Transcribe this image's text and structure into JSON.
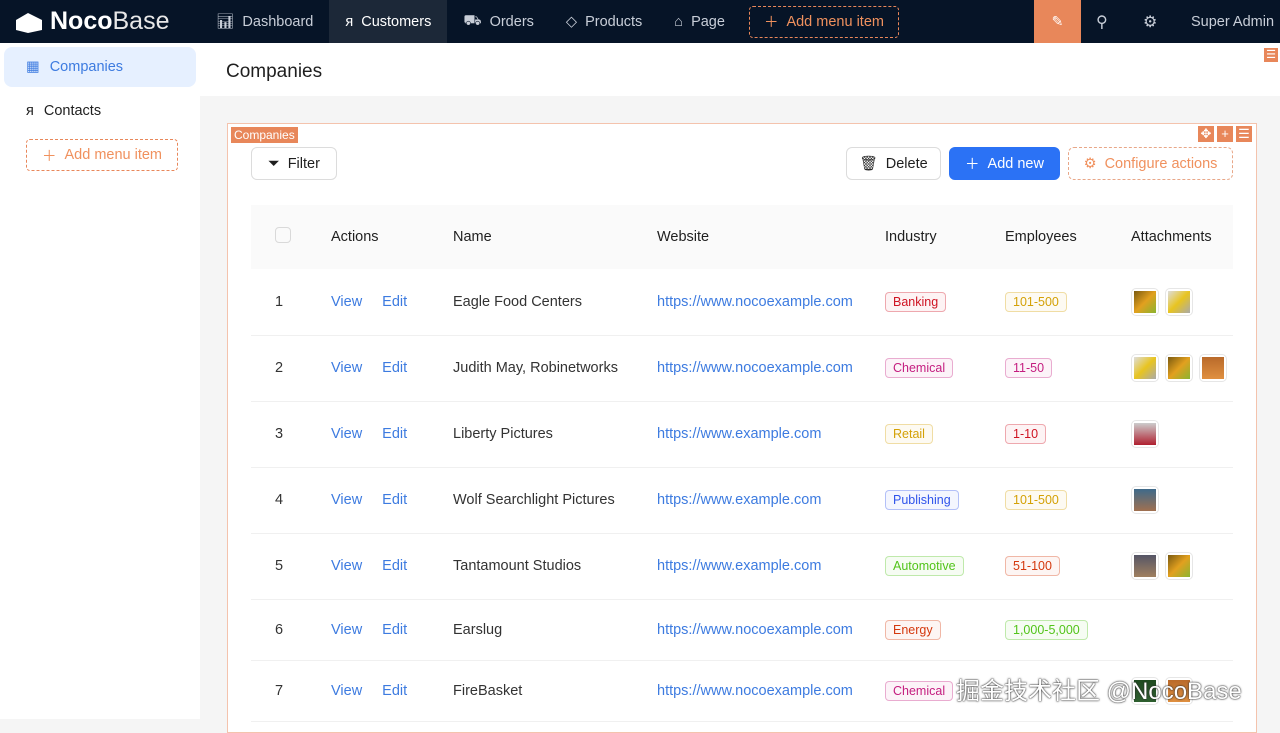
{
  "brand": {
    "bold": "Noco",
    "light": "Base"
  },
  "topnav": {
    "items": [
      {
        "label": "Dashboard",
        "icon": "bar-chart-icon"
      },
      {
        "label": "Customers",
        "icon": "user-icon",
        "active": true
      },
      {
        "label": "Orders",
        "icon": "cart-icon"
      },
      {
        "label": "Products",
        "icon": "tag-icon"
      },
      {
        "label": "Page",
        "icon": "alarm-icon"
      }
    ],
    "add_menu": "Add menu item",
    "user": "Super Admin"
  },
  "sidebar": {
    "items": [
      {
        "label": "Companies",
        "active": true
      },
      {
        "label": "Contacts"
      }
    ],
    "add_menu": "Add menu item"
  },
  "page": {
    "title": "Companies"
  },
  "block": {
    "tag": "Companies",
    "filter": "Filter",
    "delete": "Delete",
    "add_new": "Add new",
    "configure": "Configure actions"
  },
  "table": {
    "columns": [
      "Actions",
      "Name",
      "Website",
      "Industry",
      "Employees",
      "Attachments"
    ],
    "view": "View",
    "edit": "Edit",
    "rows": [
      {
        "no": "1",
        "name": "Eagle Food Centers",
        "website": "https://www.nocoexample.com",
        "industry": "Banking",
        "employees": "101-500",
        "attachments": 2
      },
      {
        "no": "2",
        "name": "Judith May, Robinetworks",
        "website": "https://www.nocoexample.com",
        "industry": "Chemical",
        "employees": "11-50",
        "attachments": 3
      },
      {
        "no": "3",
        "name": "Liberty Pictures",
        "website": "https://www.example.com",
        "industry": "Retail",
        "employees": "1-10",
        "attachments": 1
      },
      {
        "no": "4",
        "name": "Wolf Searchlight Pictures",
        "website": "https://www.example.com",
        "industry": "Publishing",
        "employees": "101-500",
        "attachments": 1
      },
      {
        "no": "5",
        "name": "Tantamount Studios",
        "website": "https://www.example.com",
        "industry": "Automotive",
        "employees": "51-100",
        "attachments": 2
      },
      {
        "no": "6",
        "name": "Earslug",
        "website": "https://www.nocoexample.com",
        "industry": "Energy",
        "employees": "1,000-5,000",
        "attachments": 0
      },
      {
        "no": "7",
        "name": "FireBasket",
        "website": "https://www.nocoexample.com",
        "industry": "Chemical",
        "employees": "",
        "attachments": 2
      }
    ]
  },
  "tag_colors": {
    "Banking": "#cf1322",
    "Chemical": "#c41d7f",
    "Retail": "#d4a106",
    "Publishing": "#2f54eb",
    "Automotive": "#52c41a",
    "Energy": "#d4380d",
    "101-500": "#d4a106",
    "11-50": "#c41d7f",
    "1-10": "#cf1322",
    "51-100": "#d4380d",
    "1,000-5,000": "#52c41a"
  },
  "watermark": "掘金技术社区 @NocoBase",
  "accent": "#e8875a",
  "primary": "#2b72f5"
}
